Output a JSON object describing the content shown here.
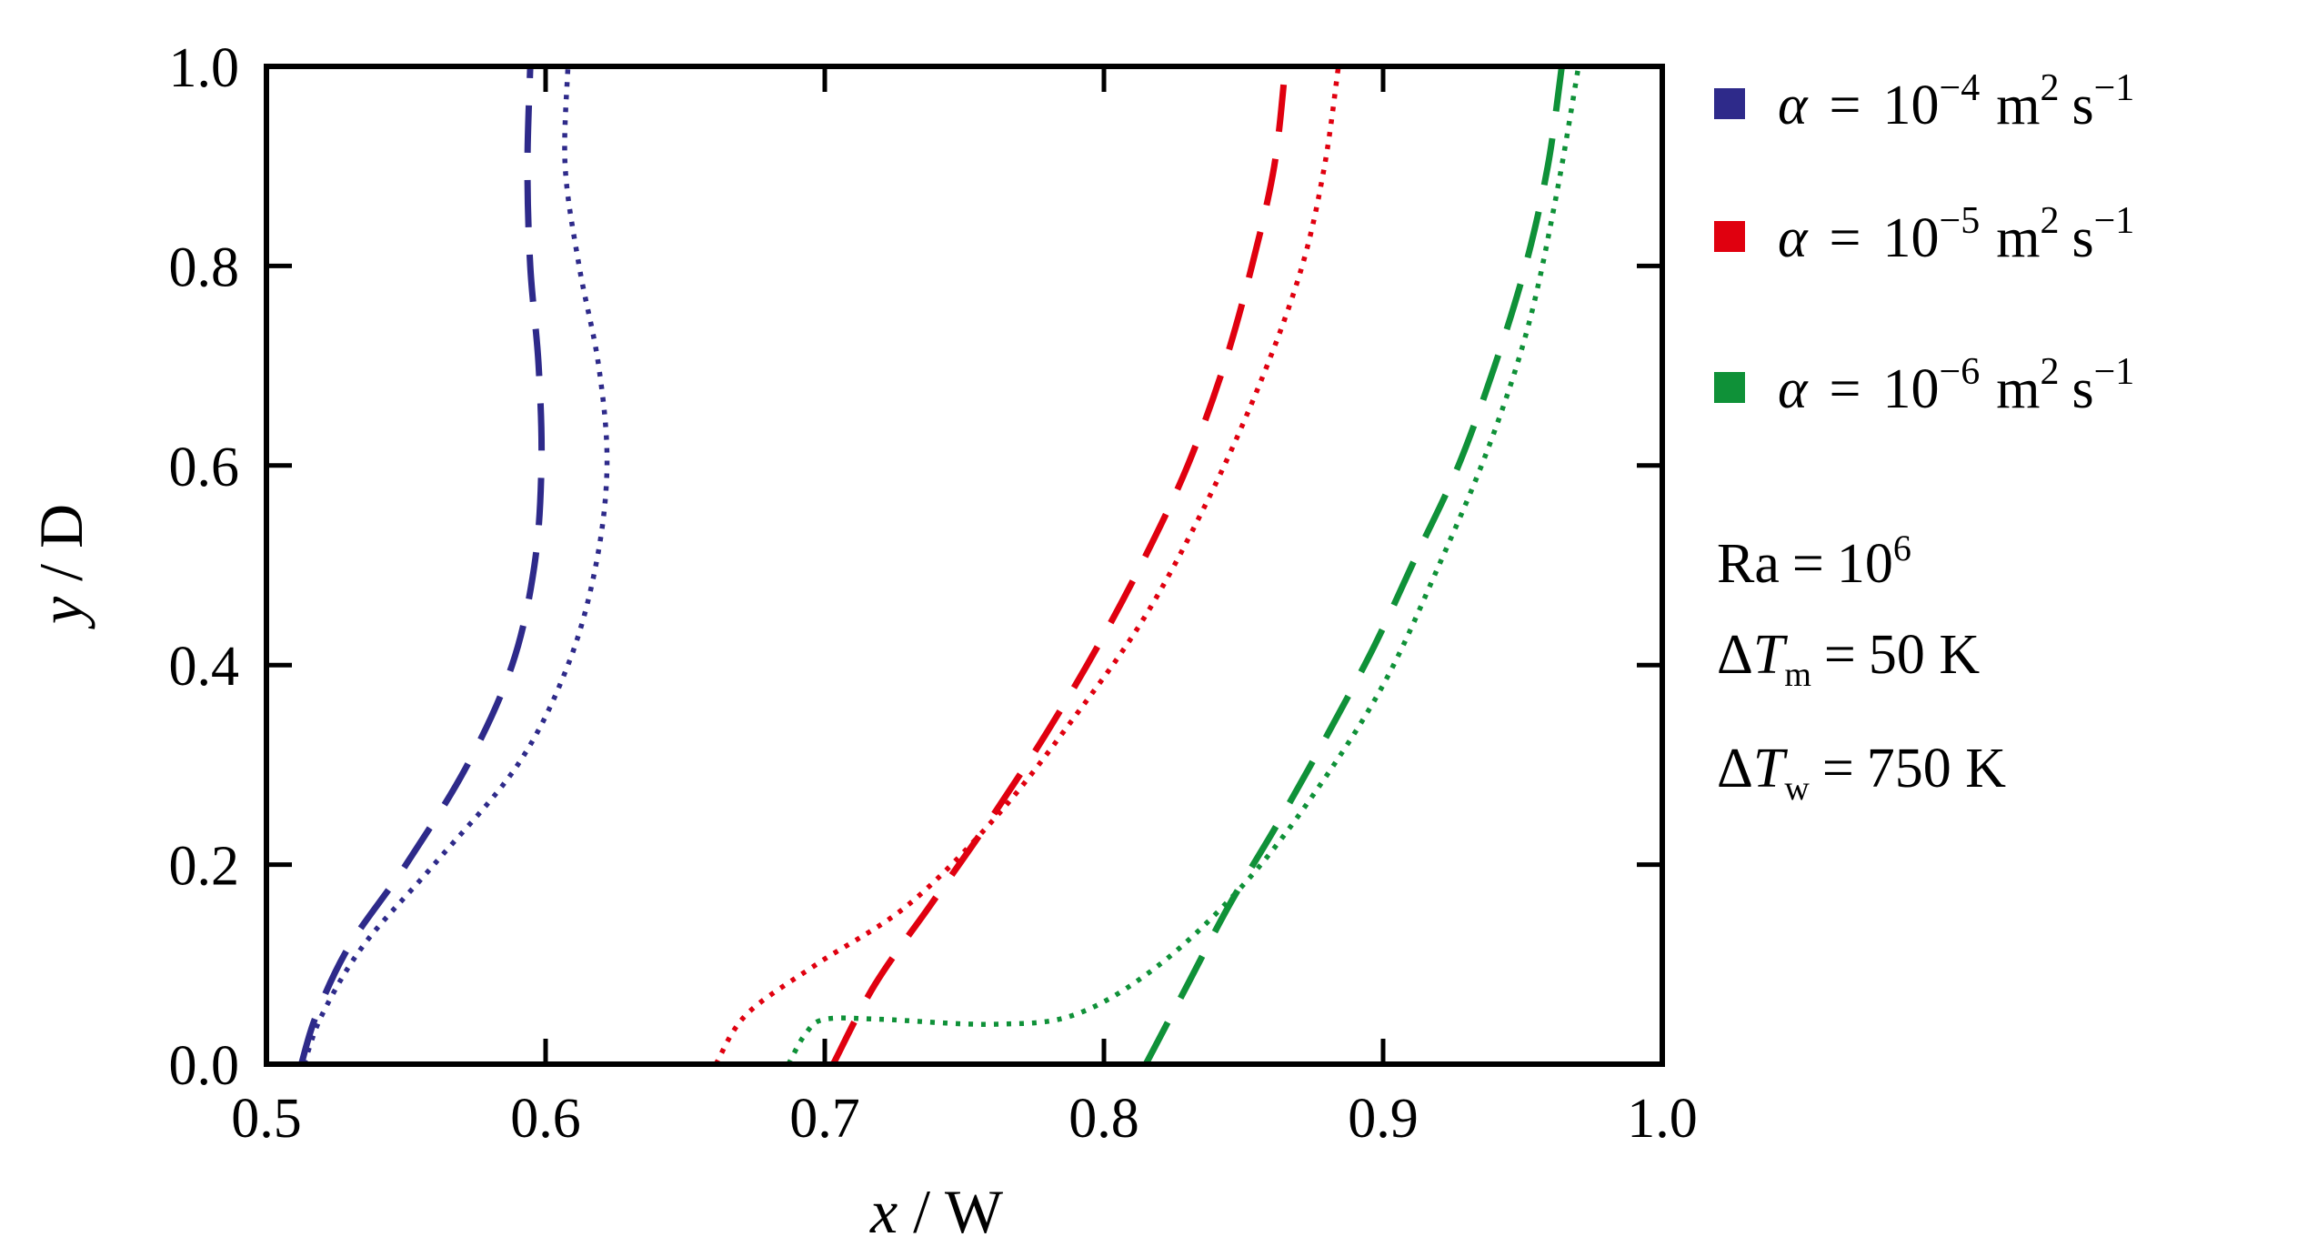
{
  "chart_data": {
    "type": "line",
    "xlabel": {
      "var": "x",
      "unit": "W",
      "sep": " / "
    },
    "ylabel": {
      "var": "y",
      "unit": "D",
      "sep": " / "
    },
    "xlim": [
      0.5,
      1.0
    ],
    "ylim": [
      0.0,
      1.0
    ],
    "xticks": [
      "0.5",
      "0.6",
      "0.7",
      "0.8",
      "0.9",
      "1.0"
    ],
    "yticks": [
      "0.0",
      "0.2",
      "0.4",
      "0.6",
      "0.8",
      "1.0"
    ],
    "grid": false,
    "legend_position": "right, outside plot",
    "series": [
      {
        "name": "α = 10−4 m2 s−1",
        "legend": {
          "sym": "α",
          "eq": "=",
          "base": "10",
          "exp": "−4",
          "unit1": "m",
          "unit1_exp": "2",
          "unit2": "s",
          "unit2_exp": "−1"
        },
        "color": "#2e2a8a",
        "dashed": {
          "x": [
            0.5125,
            0.518,
            0.53,
            0.55,
            0.572,
            0.588,
            0.596,
            0.5985,
            0.5975,
            0.5945,
            0.5935,
            0.5945
          ],
          "y": [
            0.0,
            0.05,
            0.12,
            0.2,
            0.3,
            0.4,
            0.5,
            0.6,
            0.7,
            0.8,
            0.9,
            1.0
          ]
        },
        "dotted": {
          "x": [
            0.5135,
            0.52,
            0.535,
            0.56,
            0.59,
            0.608,
            0.618,
            0.622,
            0.619,
            0.612,
            0.607,
            0.608
          ],
          "y": [
            0.0,
            0.05,
            0.12,
            0.2,
            0.3,
            0.4,
            0.5,
            0.6,
            0.7,
            0.8,
            0.9,
            1.0
          ]
        }
      },
      {
        "name": "α = 10−5 m2 s−1",
        "legend": {
          "sym": "α",
          "eq": "=",
          "base": "10",
          "exp": "−5",
          "unit1": "m",
          "unit1_exp": "2",
          "unit2": "s",
          "unit2_exp": "−1"
        },
        "color": "#e0000f",
        "dashed": {
          "x": [
            0.703,
            0.718,
            0.738,
            0.758,
            0.779,
            0.798,
            0.815,
            0.83,
            0.843,
            0.853,
            0.861,
            0.865
          ],
          "y": [
            0.0,
            0.08,
            0.16,
            0.24,
            0.33,
            0.42,
            0.51,
            0.6,
            0.7,
            0.8,
            0.9,
            1.0
          ]
        },
        "dotted": {
          "x": [
            0.661,
            0.672,
            0.697,
            0.73,
            0.762,
            0.79,
            0.815,
            0.838,
            0.857,
            0.871,
            0.879,
            0.884
          ],
          "y": [
            0.0,
            0.05,
            0.1,
            0.16,
            0.25,
            0.35,
            0.45,
            0.57,
            0.69,
            0.8,
            0.9,
            1.0
          ]
        }
      },
      {
        "name": "α = 10−6 m2 s−1",
        "legend": {
          "sym": "α",
          "eq": "=",
          "base": "10",
          "exp": "−6",
          "unit1": "m",
          "unit1_exp": "2",
          "unit2": "s",
          "unit2_exp": "−1"
        },
        "color": "#0f9138",
        "dashed": {
          "x": [
            0.815,
            0.83,
            0.845,
            0.862,
            0.88,
            0.897,
            0.912,
            0.927,
            0.94,
            0.951,
            0.959,
            0.964
          ],
          "y": [
            0.0,
            0.08,
            0.16,
            0.24,
            0.33,
            0.42,
            0.51,
            0.6,
            0.7,
            0.8,
            0.9,
            1.0
          ]
        },
        "dotted": {
          "x": [
            0.687,
            0.693,
            0.7,
            0.72,
            0.76,
            0.79,
            0.82,
            0.85,
            0.875,
            0.9,
            0.92,
            0.938,
            0.952,
            0.962,
            0.97
          ],
          "y": [
            0.0,
            0.03,
            0.045,
            0.045,
            0.04,
            0.05,
            0.1,
            0.18,
            0.27,
            0.38,
            0.5,
            0.62,
            0.74,
            0.87,
            1.0
          ]
        }
      }
    ],
    "annotations": {
      "ra": {
        "label": "Ra",
        "eq": "=",
        "base": "10",
        "exp": "6"
      },
      "dtm": {
        "delta": "Δ",
        "sym": "T",
        "sub": "m",
        "eq": "=",
        "value": "50 K"
      },
      "dtw": {
        "delta": "Δ",
        "sym": "T",
        "sub": "w",
        "eq": "=",
        "value": "750 K"
      }
    }
  }
}
